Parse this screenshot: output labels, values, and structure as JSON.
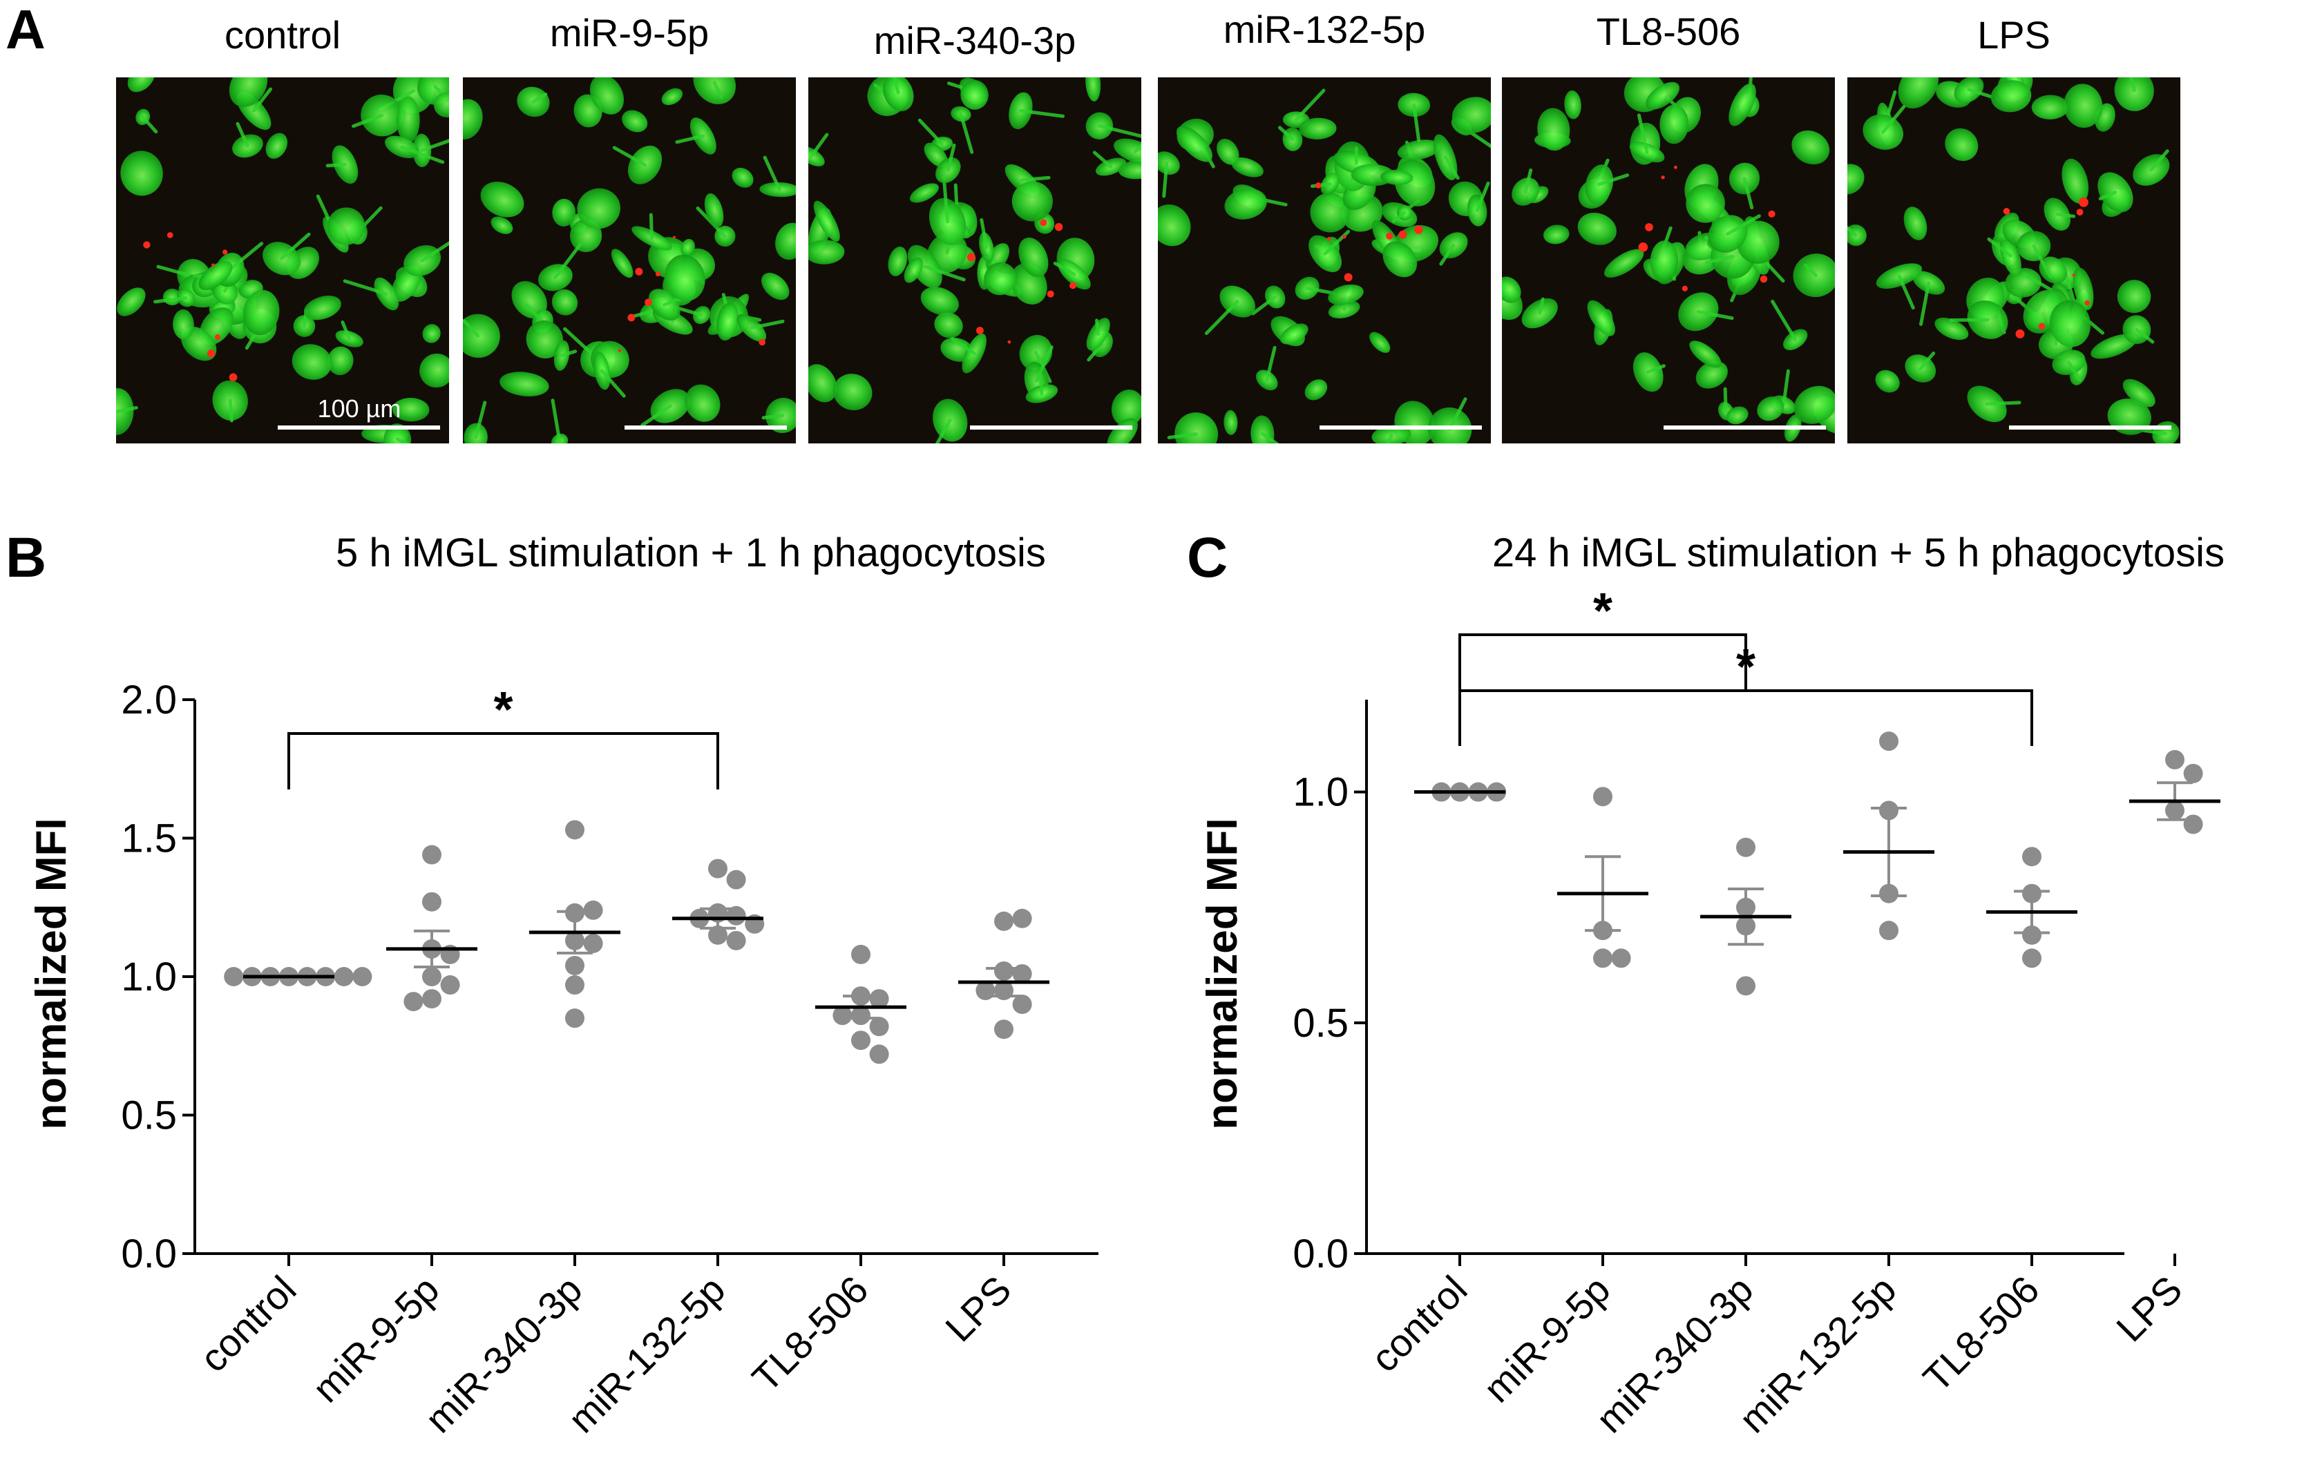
{
  "panel_a": {
    "letter": "A",
    "images": [
      {
        "label": "control"
      },
      {
        "label": "miR-9-5p"
      },
      {
        "label": "miR-340-3p"
      },
      {
        "label": "miR-132-5p"
      },
      {
        "label": "TL8-506"
      },
      {
        "label": "LPS"
      }
    ],
    "scale_bar_label": "100 µm",
    "colors": {
      "cells": "#2bd42b",
      "particles": "#ff2a1a",
      "background": "#130d08"
    }
  },
  "chart_data": [
    {
      "panel": "B",
      "type": "scatter",
      "title": "5 h iMGL stimulation + 1 h phagocytosis",
      "ylabel": "normalized MFI",
      "xlabel": "",
      "ylim": [
        0,
        2.0
      ],
      "yticks": [
        0.0,
        0.5,
        1.0,
        1.5,
        2.0
      ],
      "ytick_labels": [
        "0.0",
        "0.5",
        "1.0",
        "1.5",
        "2.0"
      ],
      "categories": [
        "control",
        "miR-9-5p",
        "miR-340-3p",
        "miR-132-5p",
        "TL8-506",
        "LPS"
      ],
      "points": [
        [
          1.0,
          1.0,
          1.0,
          1.0,
          1.0,
          1.0,
          1.0,
          1.0
        ],
        [
          1.44,
          1.27,
          1.1,
          1.08,
          1.0,
          0.97,
          0.92,
          0.91
        ],
        [
          1.53,
          1.23,
          1.24,
          1.13,
          1.12,
          1.04,
          0.97,
          0.85
        ],
        [
          1.39,
          1.35,
          1.23,
          1.22,
          1.21,
          1.19,
          1.15,
          1.13
        ],
        [
          1.08,
          0.93,
          0.92,
          0.86,
          0.86,
          0.82,
          0.77,
          0.72
        ],
        [
          1.2,
          1.21,
          1.02,
          1.01,
          0.95,
          0.95,
          0.9,
          0.81
        ]
      ],
      "mean": [
        1.0,
        1.1,
        1.16,
        1.21,
        0.89,
        0.98
      ],
      "sem": [
        0.0,
        0.065,
        0.075,
        0.035,
        0.04,
        0.05
      ],
      "significance": [
        {
          "from": "control",
          "to": "miR-132-5p",
          "label": "*"
        }
      ],
      "colors": {
        "points": "#8c8c8c",
        "mean_line": "#000000",
        "error_bar": "#8c8c8c"
      }
    },
    {
      "panel": "C",
      "type": "scatter",
      "title": "24 h iMGL stimulation + 5 h phagocytosis",
      "ylabel": "normalized MFI",
      "xlabel": "",
      "ylim": [
        0,
        1.2
      ],
      "yticks": [
        0.0,
        0.5,
        1.0
      ],
      "ytick_labels": [
        "0.0",
        "0.5",
        "1.0"
      ],
      "categories": [
        "control",
        "miR-9-5p",
        "miR-340-3p",
        "miR-132-5p",
        "TL8-506",
        "LPS"
      ],
      "points": [
        [
          1.0,
          1.0,
          1.0,
          1.0
        ],
        [
          0.99,
          0.7,
          0.64,
          0.64
        ],
        [
          0.88,
          0.75,
          0.71,
          0.58
        ],
        [
          1.11,
          0.96,
          0.78,
          0.7
        ],
        [
          0.86,
          0.78,
          0.69,
          0.64
        ],
        [
          1.07,
          1.04,
          0.96,
          0.93
        ]
      ],
      "mean": [
        1.0,
        0.78,
        0.73,
        0.87,
        0.74,
        0.98
      ],
      "sem": [
        0.0,
        0.08,
        0.06,
        0.095,
        0.045,
        0.04
      ],
      "significance": [
        {
          "from": "control",
          "to": "miR-340-3p",
          "label": "*"
        },
        {
          "from": "control",
          "to": "TL8-506",
          "label": "*"
        }
      ],
      "colors": {
        "points": "#8c8c8c",
        "mean_line": "#000000",
        "error_bar": "#8c8c8c"
      }
    }
  ]
}
